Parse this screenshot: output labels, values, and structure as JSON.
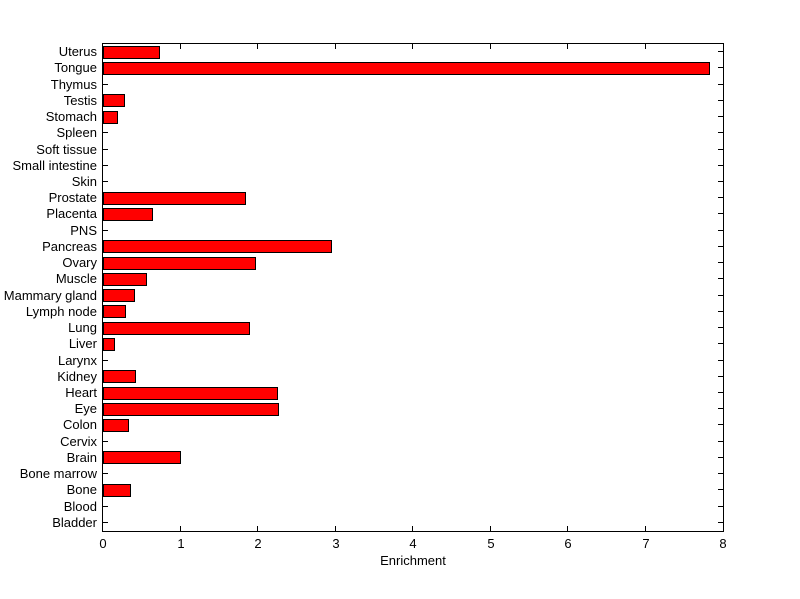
{
  "figure": {
    "background": "#ffffff",
    "text_color": "#000000",
    "axis_color": "#000000"
  },
  "chart_data": {
    "type": "bar",
    "orientation": "horizontal",
    "title": "",
    "xlabel": "Enrichment",
    "ylabel": "",
    "xlim": [
      0,
      8
    ],
    "xticks": [
      0,
      1,
      2,
      3,
      4,
      5,
      6,
      7,
      8
    ],
    "grid": false,
    "legend": null,
    "bar_color": "#ff0000",
    "bar_edge_color": "#000000",
    "categories": [
      "Uterus",
      "Tongue",
      "Thymus",
      "Testis",
      "Stomach",
      "Spleen",
      "Soft tissue",
      "Small intestine",
      "Skin",
      "Prostate",
      "Placenta",
      "PNS",
      "Pancreas",
      "Ovary",
      "Muscle",
      "Mammary gland",
      "Lymph node",
      "Lung",
      "Liver",
      "Larynx",
      "Kidney",
      "Heart",
      "Eye",
      "Colon",
      "Cervix",
      "Brain",
      "Bone marrow",
      "Bone",
      "Blood",
      "Bladder"
    ],
    "values": [
      0.74,
      7.83,
      0,
      0.29,
      0.19,
      0,
      0,
      0,
      0,
      1.85,
      0.65,
      0,
      2.96,
      1.98,
      0.57,
      0.41,
      0.3,
      1.9,
      0.16,
      0,
      0.42,
      2.26,
      2.27,
      0.33,
      0,
      1.01,
      0,
      0.36,
      0,
      0
    ]
  }
}
